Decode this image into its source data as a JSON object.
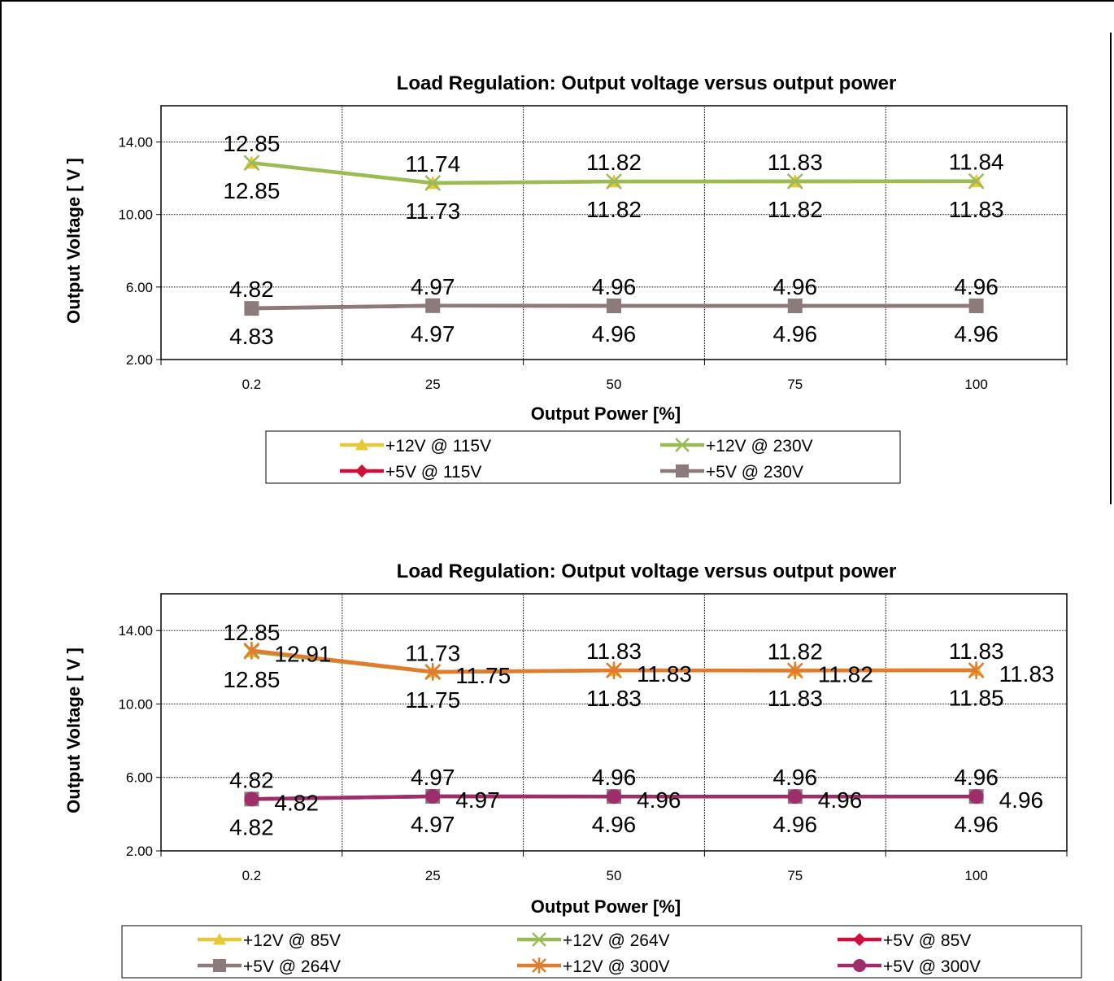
{
  "chart_data": [
    {
      "type": "line",
      "title": "Load Regulation: Output voltage versus output power",
      "xlabel": "Output Power [%]",
      "ylabel": "Output Voltage [ V ]",
      "categories": [
        "0.2",
        "25",
        "50",
        "75",
        "100"
      ],
      "y_ticks": [
        "2.00",
        "6.00",
        "10.00",
        "14.00"
      ],
      "ylim": [
        2,
        16
      ],
      "grid": true,
      "series": [
        {
          "name": "+12V @ 115V",
          "color": "#E8C838",
          "marker": "triangle",
          "values": [
            12.85,
            11.73,
            11.82,
            11.82,
            11.83
          ],
          "labels": [
            "12.85",
            "11.73",
            "11.82",
            "11.82",
            "11.83"
          ],
          "label_pos": "below"
        },
        {
          "name": "+12V @ 230V",
          "color": "#9BBB59",
          "marker": "x",
          "values": [
            12.85,
            11.74,
            11.82,
            11.83,
            11.84
          ],
          "labels": [
            "12.85",
            "11.74",
            "11.82",
            "11.83",
            "11.84"
          ],
          "label_pos": "above"
        },
        {
          "name": "+5V @ 115V",
          "color": "#D0103A",
          "marker": "diamond",
          "values": [
            4.83,
            4.97,
            4.96,
            4.96,
            4.96
          ],
          "labels": [
            "4.83",
            "4.97",
            "4.96",
            "4.96",
            "4.96"
          ],
          "label_pos": "below"
        },
        {
          "name": "+5V @ 230V",
          "color": "#8C7B7B",
          "marker": "square",
          "values": [
            4.82,
            4.97,
            4.96,
            4.96,
            4.96
          ],
          "labels": [
            "4.82",
            "4.97",
            "4.96",
            "4.96",
            "4.96"
          ],
          "label_pos": "above"
        }
      ]
    },
    {
      "type": "line",
      "title": "Load Regulation: Output voltage versus output power",
      "xlabel": "Output Power [%]",
      "ylabel": "Output Voltage [ V ]",
      "categories": [
        "0.2",
        "25",
        "50",
        "75",
        "100"
      ],
      "y_ticks": [
        "2.00",
        "6.00",
        "10.00",
        "14.00"
      ],
      "ylim": [
        2,
        16
      ],
      "grid": true,
      "series": [
        {
          "name": "+12V @ 85V",
          "color": "#E8C838",
          "marker": "triangle",
          "values": [
            12.85,
            11.75,
            11.83,
            11.83,
            11.85
          ],
          "labels": [
            "12.85",
            "11.75",
            "11.83",
            "11.83",
            "11.85"
          ],
          "label_pos": "below"
        },
        {
          "name": "+12V @ 264V",
          "color": "#9BBB59",
          "marker": "x",
          "values": [
            12.85,
            11.73,
            11.83,
            11.82,
            11.83
          ],
          "labels": [
            "12.85",
            "11.73",
            "11.83",
            "11.82",
            "11.83"
          ],
          "label_pos": "above"
        },
        {
          "name": "+5V @ 85V",
          "color": "#D0103A",
          "marker": "diamond",
          "values": [
            4.82,
            4.97,
            4.96,
            4.96,
            4.96
          ],
          "labels": [
            "4.82",
            "4.97",
            "4.96",
            "4.96",
            "4.96"
          ],
          "label_pos": "below"
        },
        {
          "name": "+5V @ 264V",
          "color": "#8C7B7B",
          "marker": "square",
          "values": [
            4.82,
            4.97,
            4.96,
            4.96,
            4.96
          ],
          "labels": [
            "4.82",
            "4.97",
            "4.96",
            "4.96",
            "4.96"
          ],
          "label_pos": "above"
        },
        {
          "name": "+12V @ 300V",
          "color": "#E07B30",
          "marker": "star",
          "values": [
            12.91,
            11.75,
            11.83,
            11.82,
            11.83
          ],
          "labels": [
            "12.91",
            "11.75",
            "11.83",
            "11.82",
            "11.83"
          ],
          "label_pos": "right"
        },
        {
          "name": "+5V @ 300V",
          "color": "#9E2E6A",
          "marker": "circle",
          "values": [
            4.82,
            4.97,
            4.96,
            4.96,
            4.96
          ],
          "labels": [
            "4.82",
            "4.97",
            "4.96",
            "4.96",
            "4.96"
          ],
          "label_pos": "right"
        }
      ]
    }
  ]
}
